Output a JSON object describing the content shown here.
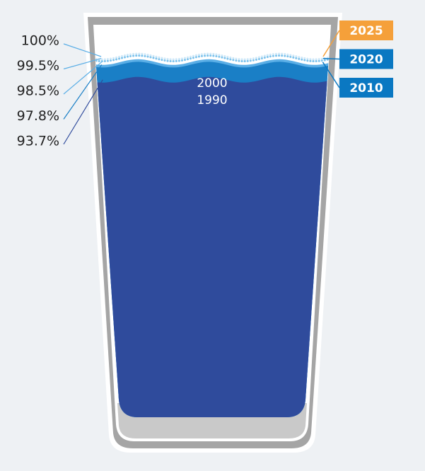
{
  "chart_data": {
    "type": "glass",
    "categories": [
      "2025",
      "2020",
      "2010",
      "2000",
      "1990"
    ],
    "values": [
      100,
      99.5,
      98.5,
      97.8,
      93.7
    ],
    "value_labels": [
      "100%",
      "99.5%",
      "98.5%",
      "97.8%",
      "93.7%"
    ],
    "colors": [
      "#cfe8f8",
      "#7ec3ec",
      "#5aaee6",
      "#1a7fc6",
      "#2f4b9c"
    ],
    "styles": [
      "dotted",
      "dotted",
      "fill",
      "fill",
      "fill"
    ],
    "tag_colors": [
      "#f5a03a",
      "#0a78c2",
      "#0a78c2",
      "#ffffff",
      "#ffffff"
    ],
    "ylim": [
      0,
      100
    ]
  }
}
